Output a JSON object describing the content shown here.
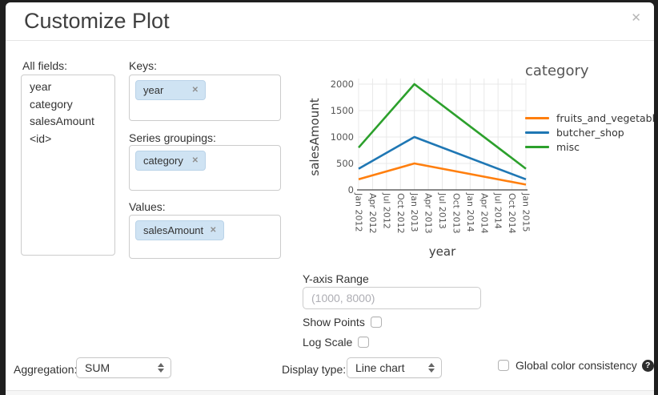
{
  "dialog": {
    "title": "Customize Plot",
    "close_glyph": "✕"
  },
  "fields_panel": {
    "label": "All fields:",
    "items": [
      "year",
      "category",
      "salesAmount",
      "<id>"
    ]
  },
  "keys_section": {
    "label": "Keys:",
    "pills": [
      "year"
    ],
    "remove_glyph": "✕"
  },
  "series_section": {
    "label": "Series groupings:",
    "pills": [
      "category"
    ],
    "remove_glyph": "✕"
  },
  "values_section": {
    "label": "Values:",
    "pills": [
      "salesAmount"
    ],
    "remove_glyph": "✕"
  },
  "y_axis_range": {
    "label": "Y-axis Range",
    "placeholder": "(1000, 8000)",
    "value": ""
  },
  "options": {
    "show_points_label": "Show Points",
    "show_points_checked": false,
    "log_scale_label": "Log Scale",
    "log_scale_checked": false
  },
  "footer_controls": {
    "aggregation_label": "Aggregation:",
    "aggregation_value": "SUM",
    "display_type_label": "Display type:",
    "display_type_value": "Line chart",
    "global_color_label": "Global color consistency",
    "global_color_checked": false,
    "help_glyph": "?"
  },
  "chart_data": {
    "type": "line",
    "xlabel": "year",
    "ylabel": "salesAmount",
    "x_ticks": [
      "Jan 2012",
      "Apr 2012",
      "Jul 2012",
      "Oct 2012",
      "Jan 2013",
      "Apr 2013",
      "Jul 2013",
      "Oct 2013",
      "Jan 2014",
      "Apr 2014",
      "Jul 2014",
      "Oct 2014",
      "Jan 2015"
    ],
    "y_ticks": [
      0,
      500,
      1000,
      1500,
      2000
    ],
    "ylim": [
      0,
      2100
    ],
    "grid": true,
    "legend_title": "category",
    "legend_position": "right",
    "series": [
      {
        "name": "fruits_and_vegetables",
        "color": "#ff7f0e",
        "points": [
          [
            "Jan 2012",
            200
          ],
          [
            "Jan 2013",
            500
          ],
          [
            "Jan 2015",
            100
          ]
        ]
      },
      {
        "name": "butcher_shop",
        "color": "#1f77b4",
        "points": [
          [
            "Jan 2012",
            400
          ],
          [
            "Jan 2013",
            1000
          ],
          [
            "Jan 2015",
            200
          ]
        ]
      },
      {
        "name": "misc",
        "color": "#2ca02c",
        "points": [
          [
            "Jan 2012",
            800
          ],
          [
            "Jan 2013",
            2000
          ],
          [
            "Jan 2015",
            400
          ]
        ]
      }
    ]
  },
  "colors": {
    "grid": "#e8e8e8",
    "axis": "#444444",
    "tick_text": "#555555",
    "axis_title_text": "#3d3d3d"
  }
}
